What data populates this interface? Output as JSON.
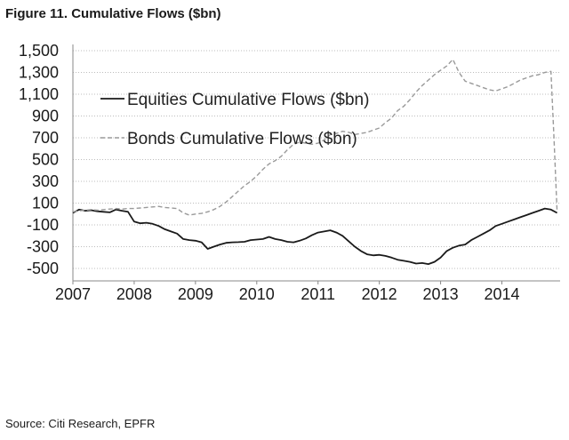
{
  "figure": {
    "title": "Figure 11. Cumulative Flows ($bn)",
    "source": "Source: Citi Research, EPFR"
  },
  "chart_data": {
    "type": "line",
    "title": "Figure 11. Cumulative Flows ($bn)",
    "xlabel": "",
    "ylabel": "",
    "xlim": [
      2007.0,
      2014.95
    ],
    "ylim": [
      -550,
      1500
    ],
    "y_ticks": [
      1500,
      1300,
      1100,
      900,
      700,
      500,
      300,
      100,
      -100,
      -300,
      -500
    ],
    "y_tick_labels": [
      "1,500",
      "1,300",
      "1,100",
      "900",
      "700",
      "500",
      "300",
      "100",
      "-100",
      "-300",
      "-500"
    ],
    "x_ticks": [
      2007,
      2008,
      2009,
      2010,
      2011,
      2012,
      2013,
      2014
    ],
    "x_tick_labels": [
      "2007",
      "2008",
      "2009",
      "2010",
      "2011",
      "2012",
      "2013",
      "2014"
    ],
    "grid": true,
    "legend_position": "top-left",
    "series": [
      {
        "name": "Equities Cumulative Flows ($bn)",
        "style": "solid",
        "color": "#1a1a1a",
        "x": [
          2007.0,
          2007.1,
          2007.2,
          2007.3,
          2007.4,
          2007.5,
          2007.6,
          2007.7,
          2007.8,
          2007.9,
          2008.0,
          2008.1,
          2008.2,
          2008.3,
          2008.4,
          2008.5,
          2008.6,
          2008.7,
          2008.8,
          2008.9,
          2009.0,
          2009.1,
          2009.2,
          2009.3,
          2009.4,
          2009.5,
          2009.6,
          2009.7,
          2009.8,
          2009.9,
          2010.0,
          2010.1,
          2010.2,
          2010.3,
          2010.4,
          2010.5,
          2010.6,
          2010.7,
          2010.8,
          2010.9,
          2011.0,
          2011.1,
          2011.2,
          2011.3,
          2011.4,
          2011.5,
          2011.6,
          2011.7,
          2011.8,
          2011.9,
          2012.0,
          2012.1,
          2012.2,
          2012.3,
          2012.4,
          2012.5,
          2012.6,
          2012.7,
          2012.8,
          2012.9,
          2013.0,
          2013.1,
          2013.2,
          2013.3,
          2013.4,
          2013.5,
          2013.6,
          2013.7,
          2013.8,
          2013.9,
          2014.0,
          2014.1,
          2014.2,
          2014.3,
          2014.4,
          2014.5,
          2014.6,
          2014.7,
          2014.8,
          2014.9
        ],
        "values": [
          10,
          40,
          30,
          35,
          25,
          20,
          15,
          40,
          30,
          20,
          -70,
          -85,
          -80,
          -90,
          -110,
          -140,
          -160,
          -180,
          -230,
          -240,
          -245,
          -260,
          -320,
          -300,
          -280,
          -265,
          -260,
          -258,
          -255,
          -240,
          -235,
          -230,
          -210,
          -230,
          -240,
          -255,
          -260,
          -245,
          -225,
          -195,
          -170,
          -160,
          -150,
          -170,
          -200,
          -250,
          -300,
          -340,
          -370,
          -380,
          -375,
          -385,
          -400,
          -420,
          -430,
          -440,
          -455,
          -450,
          -460,
          -440,
          -400,
          -340,
          -310,
          -290,
          -280,
          -240,
          -210,
          -180,
          -150,
          -110,
          -90,
          -70,
          -50,
          -30,
          -10,
          10,
          30,
          50,
          40,
          10
        ]
      },
      {
        "name": "Bonds Cumulative Flows ($bn)",
        "style": "dashed",
        "color": "#9a9a9a",
        "x": [
          2007.0,
          2007.1,
          2007.2,
          2007.3,
          2007.4,
          2007.5,
          2007.6,
          2007.7,
          2007.8,
          2007.9,
          2008.0,
          2008.1,
          2008.2,
          2008.3,
          2008.4,
          2008.5,
          2008.6,
          2008.7,
          2008.8,
          2008.9,
          2009.0,
          2009.1,
          2009.2,
          2009.3,
          2009.4,
          2009.5,
          2009.6,
          2009.7,
          2009.8,
          2009.9,
          2010.0,
          2010.1,
          2010.2,
          2010.3,
          2010.4,
          2010.5,
          2010.6,
          2010.7,
          2010.8,
          2010.9,
          2011.0,
          2011.1,
          2011.2,
          2011.3,
          2011.4,
          2011.5,
          2011.6,
          2011.7,
          2011.8,
          2011.9,
          2012.0,
          2012.1,
          2012.2,
          2012.3,
          2012.4,
          2012.5,
          2012.6,
          2012.7,
          2012.8,
          2012.9,
          2013.0,
          2013.1,
          2013.2,
          2013.3,
          2013.4,
          2013.5,
          2013.6,
          2013.7,
          2013.8,
          2013.9,
          2014.0,
          2014.1,
          2014.2,
          2014.3,
          2014.4,
          2014.5,
          2014.6,
          2014.7,
          2014.8,
          2014.85,
          2014.9
        ],
        "values": [
          20,
          30,
          35,
          40,
          35,
          40,
          45,
          50,
          45,
          50,
          50,
          55,
          60,
          65,
          70,
          60,
          55,
          50,
          10,
          -10,
          0,
          5,
          20,
          40,
          70,
          110,
          160,
          210,
          260,
          300,
          350,
          410,
          460,
          490,
          530,
          590,
          640,
          660,
          650,
          640,
          650,
          680,
          730,
          740,
          760,
          750,
          730,
          740,
          750,
          770,
          790,
          840,
          880,
          950,
          990,
          1050,
          1120,
          1180,
          1230,
          1280,
          1320,
          1360,
          1420,
          1300,
          1220,
          1200,
          1180,
          1160,
          1140,
          1130,
          1150,
          1170,
          1200,
          1230,
          1250,
          1270,
          1280,
          1300,
          1310,
          700,
          20
        ]
      }
    ]
  }
}
